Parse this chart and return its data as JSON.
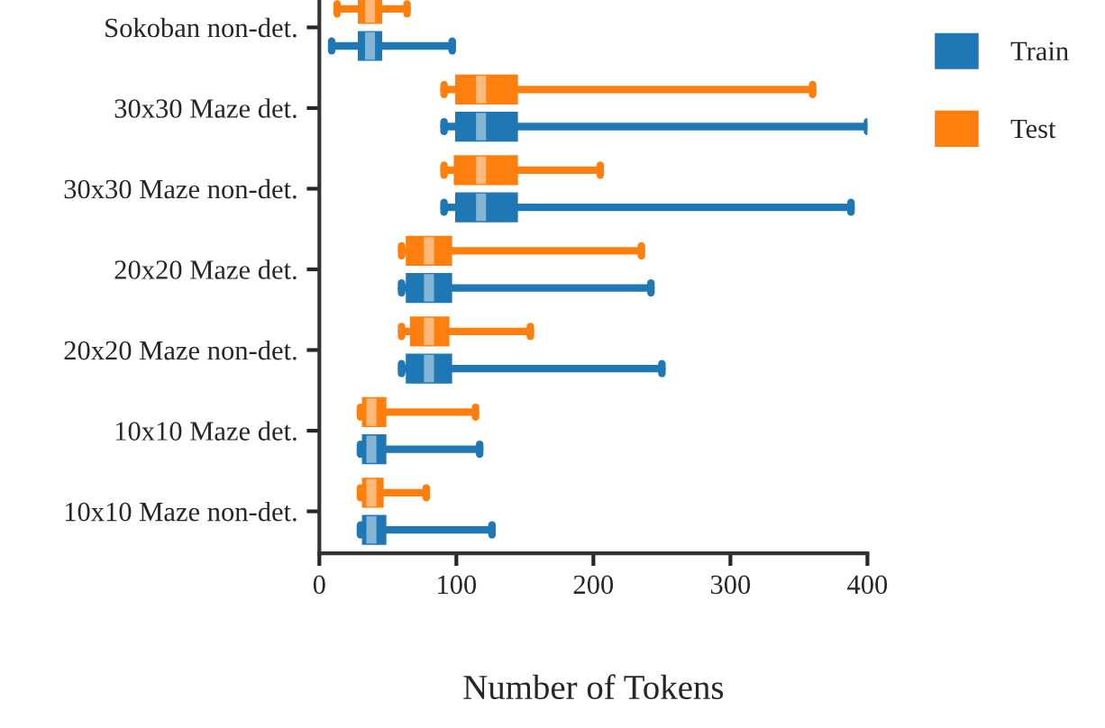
{
  "chart_data": {
    "type": "box",
    "orientation": "horizontal",
    "xlabel": "Number of Tokens",
    "categories": [
      "Sokoban non-det.",
      "30x30 Maze det.",
      "30x30 Maze non-det.",
      "20x20 Maze det.",
      "20x20 Maze non-det.",
      "10x10 Maze det.",
      "10x10 Maze non-det."
    ],
    "series": [
      {
        "name": "Train",
        "color": "#1f77b4",
        "boxes": [
          {
            "low": 9,
            "q1": 29,
            "median": 37,
            "q3": 45,
            "high": 97
          },
          {
            "low": 91,
            "q1": 100,
            "median": 118,
            "q3": 144,
            "high": 400
          },
          {
            "low": 91,
            "q1": 100,
            "median": 118,
            "q3": 144,
            "high": 388
          },
          {
            "low": 60,
            "q1": 64,
            "median": 80,
            "q3": 96,
            "high": 242
          },
          {
            "low": 60,
            "q1": 64,
            "median": 80,
            "q3": 96,
            "high": 250
          },
          {
            "low": 30,
            "q1": 32,
            "median": 38,
            "q3": 48,
            "high": 117
          },
          {
            "low": 30,
            "q1": 32,
            "median": 38,
            "q3": 48,
            "high": 126
          }
        ]
      },
      {
        "name": "Test",
        "color": "#ff7f0e",
        "boxes": [
          {
            "low": 13,
            "q1": 29,
            "median": 37,
            "q3": 45,
            "high": 64
          },
          {
            "low": 91,
            "q1": 100,
            "median": 118,
            "q3": 144,
            "high": 360
          },
          {
            "low": 91,
            "q1": 99,
            "median": 118,
            "q3": 144,
            "high": 205
          },
          {
            "low": 60,
            "q1": 64,
            "median": 80,
            "q3": 96,
            "high": 235
          },
          {
            "low": 60,
            "q1": 67,
            "median": 80,
            "q3": 94,
            "high": 154
          },
          {
            "low": 30,
            "q1": 32,
            "median": 38,
            "q3": 48,
            "high": 114
          },
          {
            "low": 30,
            "q1": 32,
            "median": 38,
            "q3": 46,
            "high": 78
          }
        ]
      }
    ],
    "xlim": [
      0,
      400
    ],
    "xticks": [
      0,
      100,
      200,
      300,
      400
    ],
    "grid": false,
    "legend": "top right"
  }
}
